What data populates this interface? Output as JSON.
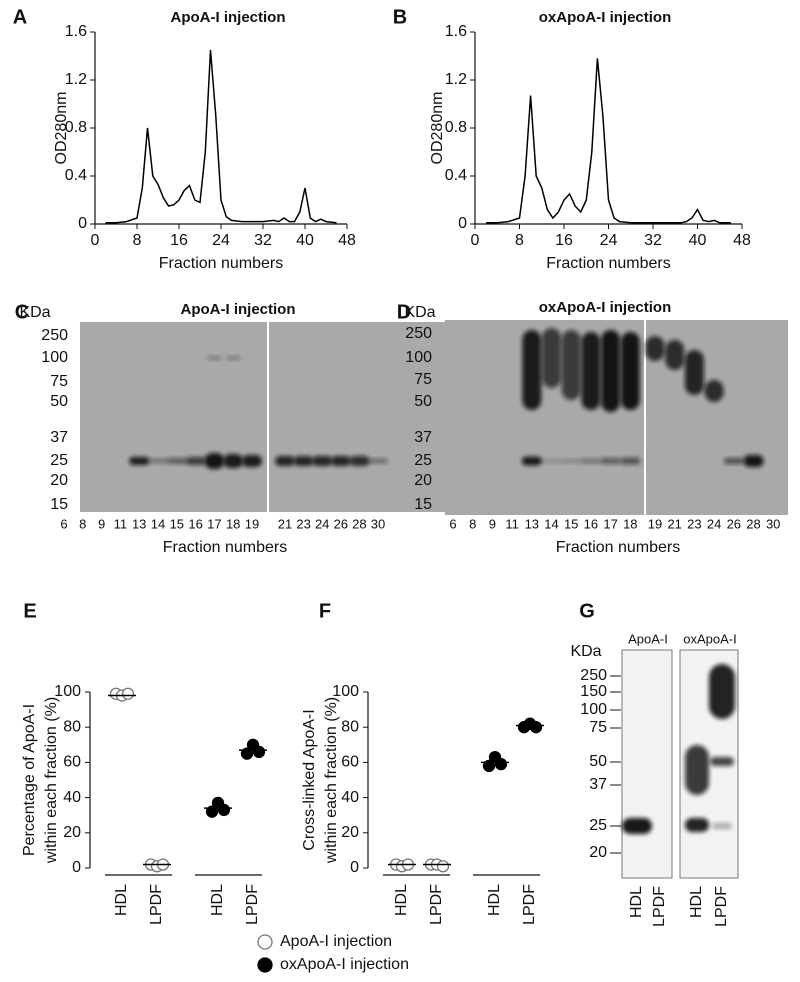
{
  "chart_data": [
    {
      "type": "line",
      "panel": "A",
      "title": "ApoA-I injection",
      "ylabel": "OD280nm",
      "xlabel": "Fraction numbers",
      "x": [
        2,
        4,
        6,
        8,
        9,
        10,
        11,
        12,
        13,
        14,
        15,
        16,
        17,
        18,
        19,
        20,
        21,
        22,
        23,
        24,
        25,
        26,
        28,
        30,
        32,
        34,
        35,
        36,
        37,
        38,
        39,
        40,
        41,
        42,
        43,
        44,
        46
      ],
      "values": [
        0.01,
        0.01,
        0.02,
        0.05,
        0.3,
        0.8,
        0.4,
        0.33,
        0.22,
        0.15,
        0.16,
        0.2,
        0.28,
        0.32,
        0.2,
        0.18,
        0.6,
        1.45,
        0.9,
        0.2,
        0.06,
        0.03,
        0.02,
        0.02,
        0.02,
        0.03,
        0.02,
        0.05,
        0.02,
        0.02,
        0.1,
        0.3,
        0.05,
        0.02,
        0.04,
        0.02,
        0.01
      ],
      "color": "#000000",
      "xlim": [
        0,
        48
      ],
      "xticks": [
        0,
        8,
        16,
        24,
        32,
        40,
        48
      ],
      "ylim": [
        0,
        1.6
      ],
      "yticks": [
        0,
        0.4,
        0.8,
        1.2,
        1.6
      ]
    },
    {
      "type": "line",
      "panel": "B",
      "title": "oxApoA-I injection",
      "ylabel": "OD280nm",
      "xlabel": "Fraction numbers",
      "x": [
        2,
        4,
        6,
        8,
        9,
        10,
        11,
        12,
        13,
        14,
        15,
        16,
        17,
        18,
        19,
        20,
        21,
        22,
        23,
        24,
        25,
        26,
        28,
        30,
        32,
        34,
        35,
        36,
        37,
        38,
        39,
        40,
        41,
        42,
        43,
        44,
        46
      ],
      "values": [
        0.01,
        0.01,
        0.02,
        0.05,
        0.4,
        1.07,
        0.4,
        0.3,
        0.12,
        0.05,
        0.1,
        0.2,
        0.25,
        0.15,
        0.1,
        0.2,
        0.6,
        1.38,
        0.9,
        0.2,
        0.05,
        0.02,
        0.01,
        0.01,
        0.01,
        0.01,
        0.01,
        0.01,
        0.01,
        0.02,
        0.05,
        0.12,
        0.03,
        0.02,
        0.03,
        0.01,
        0.01
      ],
      "color": "#000000",
      "xlim": [
        0,
        48
      ],
      "xticks": [
        0,
        8,
        16,
        24,
        32,
        40,
        48
      ],
      "ylim": [
        0,
        1.6
      ],
      "yticks": [
        0,
        0.4,
        0.8,
        1.2,
        1.6
      ]
    },
    {
      "type": "dot",
      "panel": "E",
      "ylabel": [
        "Percentage of ApoA-I",
        "within each fraction (%)"
      ],
      "categories": [
        "HDL",
        "LPDF",
        "HDL",
        "LPDF"
      ],
      "ylim": [
        0,
        100
      ],
      "yticks": [
        0,
        20,
        40,
        60,
        80,
        100
      ],
      "series": [
        {
          "name": "ApoA-I injection",
          "color": "#777777",
          "filled": false,
          "values": [
            98,
            2,
            null,
            null
          ],
          "replicates": [
            [
              99,
              98,
              99
            ],
            [
              2,
              1,
              2
            ],
            null,
            null
          ]
        },
        {
          "name": "oxApoA-I injection",
          "color": "#000000",
          "filled": true,
          "values": [
            null,
            null,
            34,
            67
          ],
          "replicates": [
            null,
            null,
            [
              32,
              37,
              33
            ],
            [
              65,
              70,
              66
            ]
          ]
        }
      ]
    },
    {
      "type": "dot",
      "panel": "F",
      "ylabel": [
        "Cross-linked ApoA-I",
        "within each fraction (%)"
      ],
      "categories": [
        "HDL",
        "LPDF",
        "HDL",
        "LPDF"
      ],
      "ylim": [
        0,
        100
      ],
      "yticks": [
        0,
        20,
        40,
        60,
        80,
        100
      ],
      "series": [
        {
          "name": "ApoA-I injection",
          "color": "#777777",
          "filled": false,
          "values": [
            2,
            2,
            null,
            null
          ],
          "replicates": [
            [
              2,
              1,
              2
            ],
            [
              2,
              2,
              1
            ],
            null,
            null
          ]
        },
        {
          "name": "oxApoA-I injection",
          "color": "#000000",
          "filled": true,
          "values": [
            null,
            null,
            60,
            81
          ],
          "replicates": [
            null,
            null,
            [
              58,
              63,
              59
            ],
            [
              80,
              82,
              80
            ]
          ]
        }
      ]
    }
  ],
  "blots": [
    {
      "panel": "C",
      "title": "ApoA-I injection",
      "unit": "KDa",
      "markers": [
        "250",
        "100",
        "75",
        "50",
        "37",
        "25",
        "20",
        "15"
      ],
      "lanes": [
        "6",
        "8",
        "9",
        "11",
        "13",
        "14",
        "15",
        "16",
        "17",
        "18",
        "19",
        "21",
        "23",
        "24",
        "26",
        "28",
        "30"
      ],
      "xlabel": "Fraction numbers"
    },
    {
      "panel": "D",
      "title": "oxApoA-I injection",
      "unit": "KDa",
      "markers": [
        "250",
        "100",
        "75",
        "50",
        "37",
        "25",
        "20",
        "15"
      ],
      "lanes": [
        "6",
        "8",
        "9",
        "11",
        "13",
        "14",
        "15",
        "16",
        "17",
        "18",
        "19",
        "21",
        "23",
        "24",
        "26",
        "28",
        "30"
      ],
      "xlabel": "Fraction numbers"
    },
    {
      "panel": "G",
      "unit": "KDa",
      "markers": [
        "250",
        "150",
        "100",
        "75",
        "50",
        "37",
        "25",
        "20"
      ],
      "groups": [
        "ApoA-I",
        "oxApoA-I"
      ],
      "lanes": [
        "HDL",
        "LPDF",
        "HDL",
        "LPDF"
      ]
    }
  ]
}
